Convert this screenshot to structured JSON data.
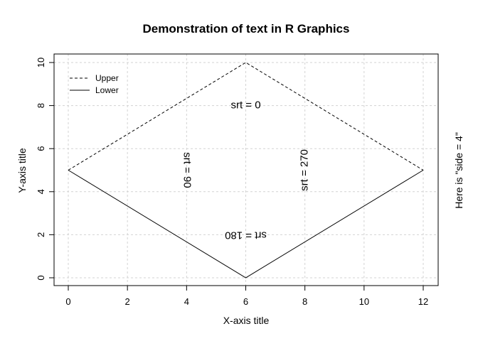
{
  "chart_data": {
    "type": "line",
    "title": "Demonstration of text in R Graphics",
    "xlabel": "X-axis title",
    "ylabel": "Y-axis title",
    "side_text": "Here is \"side = 4\"",
    "xlim": [
      0,
      12
    ],
    "ylim": [
      0,
      10
    ],
    "x_ticks": [
      0,
      2,
      4,
      6,
      8,
      10,
      12
    ],
    "y_ticks": [
      0,
      2,
      4,
      6,
      8,
      10
    ],
    "grid": true,
    "legend_position": "top-left",
    "series": [
      {
        "name": "Upper",
        "style": "dashed",
        "x": [
          0,
          6,
          12
        ],
        "y": [
          5,
          10,
          5
        ]
      },
      {
        "name": "Lower",
        "style": "solid",
        "x": [
          0,
          6,
          12
        ],
        "y": [
          5,
          0,
          5
        ]
      }
    ],
    "annotations": [
      {
        "label": "srt = 0",
        "x": 6,
        "y": 8,
        "rotation": 0
      },
      {
        "label": "srt = 90",
        "x": 4,
        "y": 5,
        "rotation": 90
      },
      {
        "label": "srt = 180",
        "x": 6,
        "y": 2,
        "rotation": 180
      },
      {
        "label": "srt = 270",
        "x": 8,
        "y": 5,
        "rotation": 270
      }
    ]
  },
  "colors": {
    "line": "#000000",
    "grid": "#d3d3d3",
    "background": "#ffffff"
  }
}
